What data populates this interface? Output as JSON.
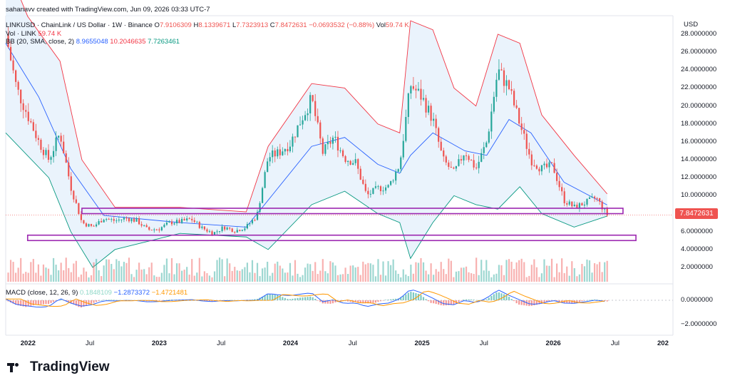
{
  "header": {
    "created_line": "sahanavv created with TradingView.com, Jun 09, 2026 03:33 UTC-7",
    "symbol_line": "LINKUSD · ChainLink / US Dollar · 1W · Binance",
    "ohlc": {
      "o_label": "O",
      "o": "7.9106309",
      "h_label": "H",
      "h": "8.1339671",
      "l_label": "L",
      "l": "7.7323913",
      "c_label": "C",
      "c": "7.8472631",
      "change": "−0.0693532 (−0.88%)",
      "vol_label": "Vol",
      "vol": "59.74 K"
    },
    "vol_line_label": "Vol · LINK",
    "vol_line_value": "59.74 K",
    "bb_label": "BB (20, SMA, close, 2)",
    "bb_basis": "8.9655048",
    "bb_upper": "10.2046635",
    "bb_lower": "7.7263461",
    "macd_label": "MACD (close, 12, 26, 9)",
    "macd_hist": "0.1848109",
    "macd_line": "−1.2873372",
    "macd_signal": "−1.4721481"
  },
  "axis": {
    "currency": "USD",
    "price_ticks": [
      "28.0000000",
      "26.0000000",
      "24.0000000",
      "22.0000000",
      "20.0000000",
      "18.0000000",
      "16.0000000",
      "14.0000000",
      "12.0000000",
      "10.0000000",
      "6.0000000",
      "4.0000000",
      "2.0000000"
    ],
    "macd_ticks": [
      "0.0000000",
      "−2.0000000"
    ],
    "time_ticks": [
      "2022",
      "Jul",
      "2023",
      "Jul",
      "2024",
      "Jul",
      "2025",
      "Jul",
      "2026",
      "Jul",
      "202"
    ],
    "last_price": "7.8472631"
  },
  "footer": {
    "brand": "TradingView"
  },
  "colors": {
    "up": "#26a69a",
    "down": "#ef5350",
    "bb_upper": "#f23645",
    "bb_lower": "#089981",
    "bb_basis": "#2962ff",
    "bb_fill": "#e3effb",
    "zone": "#9c27b0",
    "macd_line": "#2962ff",
    "signal_line": "#ff9800"
  },
  "chart_data": {
    "type": "candlestick",
    "interval": "1W",
    "x_range": [
      "2021-11",
      "2026-12"
    ],
    "ylim": [
      0,
      30
    ],
    "price_path": [
      [
        "2021-11-01",
        28
      ],
      [
        "2021-12-01",
        22
      ],
      [
        "2022-01-01",
        19
      ],
      [
        "2022-02-01",
        16
      ],
      [
        "2022-03-01",
        14
      ],
      [
        "2022-04-01",
        17
      ],
      [
        "2022-05-01",
        11
      ],
      [
        "2022-06-01",
        7
      ],
      [
        "2022-07-01",
        6.5
      ],
      [
        "2022-08-01",
        7.5
      ],
      [
        "2022-09-01",
        7.2
      ],
      [
        "2022-10-01",
        7.5
      ],
      [
        "2022-11-01",
        7.2
      ],
      [
        "2022-12-01",
        6.2
      ],
      [
        "2023-01-01",
        6.3
      ],
      [
        "2023-02-01",
        7.0
      ],
      [
        "2023-03-01",
        7.1
      ],
      [
        "2023-04-01",
        7.4
      ],
      [
        "2023-05-01",
        6.4
      ],
      [
        "2023-06-01",
        5.8
      ],
      [
        "2023-07-01",
        6.5
      ],
      [
        "2023-08-01",
        6.1
      ],
      [
        "2023-09-01",
        6.5
      ],
      [
        "2023-10-01",
        7.8
      ],
      [
        "2023-11-01",
        14.3
      ],
      [
        "2023-12-01",
        14.8
      ],
      [
        "2024-01-01",
        15.8
      ],
      [
        "2024-02-01",
        18.5
      ],
      [
        "2024-03-01",
        20.8
      ],
      [
        "2024-04-01",
        14.8
      ],
      [
        "2024-05-01",
        16.5
      ],
      [
        "2024-06-01",
        14.2
      ],
      [
        "2024-07-01",
        13.7
      ],
      [
        "2024-08-01",
        10.0
      ],
      [
        "2024-09-01",
        10.8
      ],
      [
        "2024-10-01",
        11.0
      ],
      [
        "2024-11-01",
        13.5
      ],
      [
        "2024-12-01",
        22.4
      ],
      [
        "2025-01-01",
        21.0
      ],
      [
        "2025-02-01",
        18.5
      ],
      [
        "2025-03-01",
        14.0
      ],
      [
        "2025-04-01",
        12.5
      ],
      [
        "2025-05-01",
        15.0
      ],
      [
        "2025-06-01",
        13.0
      ],
      [
        "2025-07-01",
        16.0
      ],
      [
        "2025-08-01",
        24.0
      ],
      [
        "2025-09-01",
        22.0
      ],
      [
        "2025-10-01",
        18.0
      ],
      [
        "2025-11-01",
        14.0
      ],
      [
        "2025-12-01",
        13.0
      ],
      [
        "2026-01-01",
        13.3
      ],
      [
        "2026-02-01",
        9.5
      ],
      [
        "2026-03-01",
        8.7
      ],
      [
        "2026-04-01",
        9.2
      ],
      [
        "2026-05-01",
        9.8
      ],
      [
        "2026-06-01",
        7.85
      ]
    ],
    "bollinger_upper": [
      [
        "2021-11-01",
        36
      ],
      [
        "2022-01-01",
        30
      ],
      [
        "2022-04-01",
        25
      ],
      [
        "2022-06-01",
        14
      ],
      [
        "2022-09-01",
        8.7
      ],
      [
        "2023-03-01",
        8.7
      ],
      [
        "2023-09-01",
        8.2
      ],
      [
        "2023-11-01",
        15.5
      ],
      [
        "2024-03-01",
        22.5
      ],
      [
        "2024-06-01",
        22.0
      ],
      [
        "2024-09-01",
        18.0
      ],
      [
        "2024-11-01",
        17.0
      ],
      [
        "2024-12-01",
        29.5
      ],
      [
        "2025-02-01",
        28.5
      ],
      [
        "2025-04-01",
        22.0
      ],
      [
        "2025-06-01",
        20.0
      ],
      [
        "2025-08-01",
        28.0
      ],
      [
        "2025-10-01",
        27.0
      ],
      [
        "2025-12-01",
        19.0
      ],
      [
        "2026-03-01",
        14.5
      ],
      [
        "2026-06-01",
        10.2
      ]
    ],
    "bollinger_lower": [
      [
        "2021-11-01",
        17
      ],
      [
        "2022-03-01",
        12
      ],
      [
        "2022-05-01",
        6.0
      ],
      [
        "2022-07-01",
        2.0
      ],
      [
        "2022-09-01",
        4.0
      ],
      [
        "2023-03-01",
        5.8
      ],
      [
        "2023-09-01",
        5.4
      ],
      [
        "2023-11-01",
        4.0
      ],
      [
        "2024-03-01",
        9.0
      ],
      [
        "2024-06-01",
        10.5
      ],
      [
        "2024-09-01",
        8.0
      ],
      [
        "2024-11-01",
        7.0
      ],
      [
        "2024-12-01",
        3.0
      ],
      [
        "2025-02-01",
        7.0
      ],
      [
        "2025-04-01",
        10.0
      ],
      [
        "2025-06-01",
        9.0
      ],
      [
        "2025-08-01",
        8.5
      ],
      [
        "2025-10-01",
        11.0
      ],
      [
        "2025-12-01",
        8.0
      ],
      [
        "2026-03-01",
        6.5
      ],
      [
        "2026-06-01",
        7.73
      ]
    ],
    "bollinger_basis": [
      [
        "2021-11-01",
        27
      ],
      [
        "2022-02-01",
        21
      ],
      [
        "2022-05-01",
        13
      ],
      [
        "2022-08-01",
        7.8
      ],
      [
        "2023-03-01",
        7.0
      ],
      [
        "2023-09-01",
        6.5
      ],
      [
        "2023-11-01",
        9.5
      ],
      [
        "2024-03-01",
        15.5
      ],
      [
        "2024-06-01",
        16.5
      ],
      [
        "2024-09-01",
        13.5
      ],
      [
        "2024-11-01",
        12.5
      ],
      [
        "2024-12-01",
        14.5
      ],
      [
        "2025-02-01",
        17.0
      ],
      [
        "2025-05-01",
        15.0
      ],
      [
        "2025-07-01",
        14.5
      ],
      [
        "2025-09-01",
        18.5
      ],
      [
        "2025-11-01",
        17.0
      ],
      [
        "2026-02-01",
        11.5
      ],
      [
        "2026-06-01",
        8.97
      ]
    ],
    "support_zones": [
      {
        "low": 8.0,
        "high": 8.6
      },
      {
        "low": 5.0,
        "high": 5.6
      }
    ],
    "last_close": 7.8472631
  }
}
